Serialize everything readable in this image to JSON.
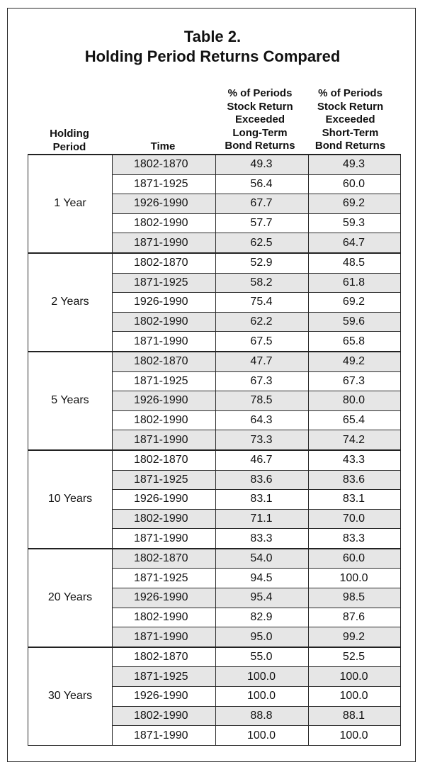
{
  "title": {
    "line1": "Table 2.",
    "line2": "Holding Period Returns Compared"
  },
  "columns": {
    "holding_period": [
      "Holding",
      "Period"
    ],
    "time": "Time",
    "long_term": [
      "% of Periods",
      "Stock Return",
      "Exceeded",
      "Long-Term",
      "Bond Returns"
    ],
    "short_term": [
      "% of Periods",
      "Stock Return",
      "Exceeded",
      "Short-Term",
      "Bond Returns"
    ]
  },
  "groups": [
    {
      "label": "1 Year",
      "rows": [
        {
          "time": "1802-1870",
          "lt": "49.3",
          "st": "49.3",
          "shade": true
        },
        {
          "time": "1871-1925",
          "lt": "56.4",
          "st": "60.0",
          "shade": false
        },
        {
          "time": "1926-1990",
          "lt": "67.7",
          "st": "69.2",
          "shade": true
        },
        {
          "time": "1802-1990",
          "lt": "57.7",
          "st": "59.3",
          "shade": false
        },
        {
          "time": "1871-1990",
          "lt": "62.5",
          "st": "64.7",
          "shade": true
        }
      ]
    },
    {
      "label": "2 Years",
      "rows": [
        {
          "time": "1802-1870",
          "lt": "52.9",
          "st": "48.5",
          "shade": false
        },
        {
          "time": "1871-1925",
          "lt": "58.2",
          "st": "61.8",
          "shade": true
        },
        {
          "time": "1926-1990",
          "lt": "75.4",
          "st": "69.2",
          "shade": false
        },
        {
          "time": "1802-1990",
          "lt": "62.2",
          "st": "59.6",
          "shade": true
        },
        {
          "time": "1871-1990",
          "lt": "67.5",
          "st": "65.8",
          "shade": false
        }
      ]
    },
    {
      "label": "5 Years",
      "rows": [
        {
          "time": "1802-1870",
          "lt": "47.7",
          "st": "49.2",
          "shade": true
        },
        {
          "time": "1871-1925",
          "lt": "67.3",
          "st": "67.3",
          "shade": false
        },
        {
          "time": "1926-1990",
          "lt": "78.5",
          "st": "80.0",
          "shade": true
        },
        {
          "time": "1802-1990",
          "lt": "64.3",
          "st": "65.4",
          "shade": false
        },
        {
          "time": "1871-1990",
          "lt": "73.3",
          "st": "74.2",
          "shade": true
        }
      ]
    },
    {
      "label": "10 Years",
      "rows": [
        {
          "time": "1802-1870",
          "lt": "46.7",
          "st": "43.3",
          "shade": false
        },
        {
          "time": "1871-1925",
          "lt": "83.6",
          "st": "83.6",
          "shade": true
        },
        {
          "time": "1926-1990",
          "lt": "83.1",
          "st": "83.1",
          "shade": false
        },
        {
          "time": "1802-1990",
          "lt": "71.1",
          "st": "70.0",
          "shade": true
        },
        {
          "time": "1871-1990",
          "lt": "83.3",
          "st": "83.3",
          "shade": false
        }
      ]
    },
    {
      "label": "20 Years",
      "rows": [
        {
          "time": "1802-1870",
          "lt": "54.0",
          "st": "60.0",
          "shade": true
        },
        {
          "time": "1871-1925",
          "lt": "94.5",
          "st": "100.0",
          "shade": false
        },
        {
          "time": "1926-1990",
          "lt": "95.4",
          "st": "98.5",
          "shade": true
        },
        {
          "time": "1802-1990",
          "lt": "82.9",
          "st": "87.6",
          "shade": false
        },
        {
          "time": "1871-1990",
          "lt": "95.0",
          "st": "99.2",
          "shade": true
        }
      ]
    },
    {
      "label": "30 Years",
      "rows": [
        {
          "time": "1802-1870",
          "lt": "55.0",
          "st": "52.5",
          "shade": false
        },
        {
          "time": "1871-1925",
          "lt": "100.0",
          "st": "100.0",
          "shade": true
        },
        {
          "time": "1926-1990",
          "lt": "100.0",
          "st": "100.0",
          "shade": false
        },
        {
          "time": "1802-1990",
          "lt": "88.8",
          "st": "88.1",
          "shade": true
        },
        {
          "time": "1871-1990",
          "lt": "100.0",
          "st": "100.0",
          "shade": false
        }
      ]
    }
  ],
  "colors": {
    "shade": "#e6e6e6",
    "border": "#2a2a2a",
    "text": "#111111"
  }
}
